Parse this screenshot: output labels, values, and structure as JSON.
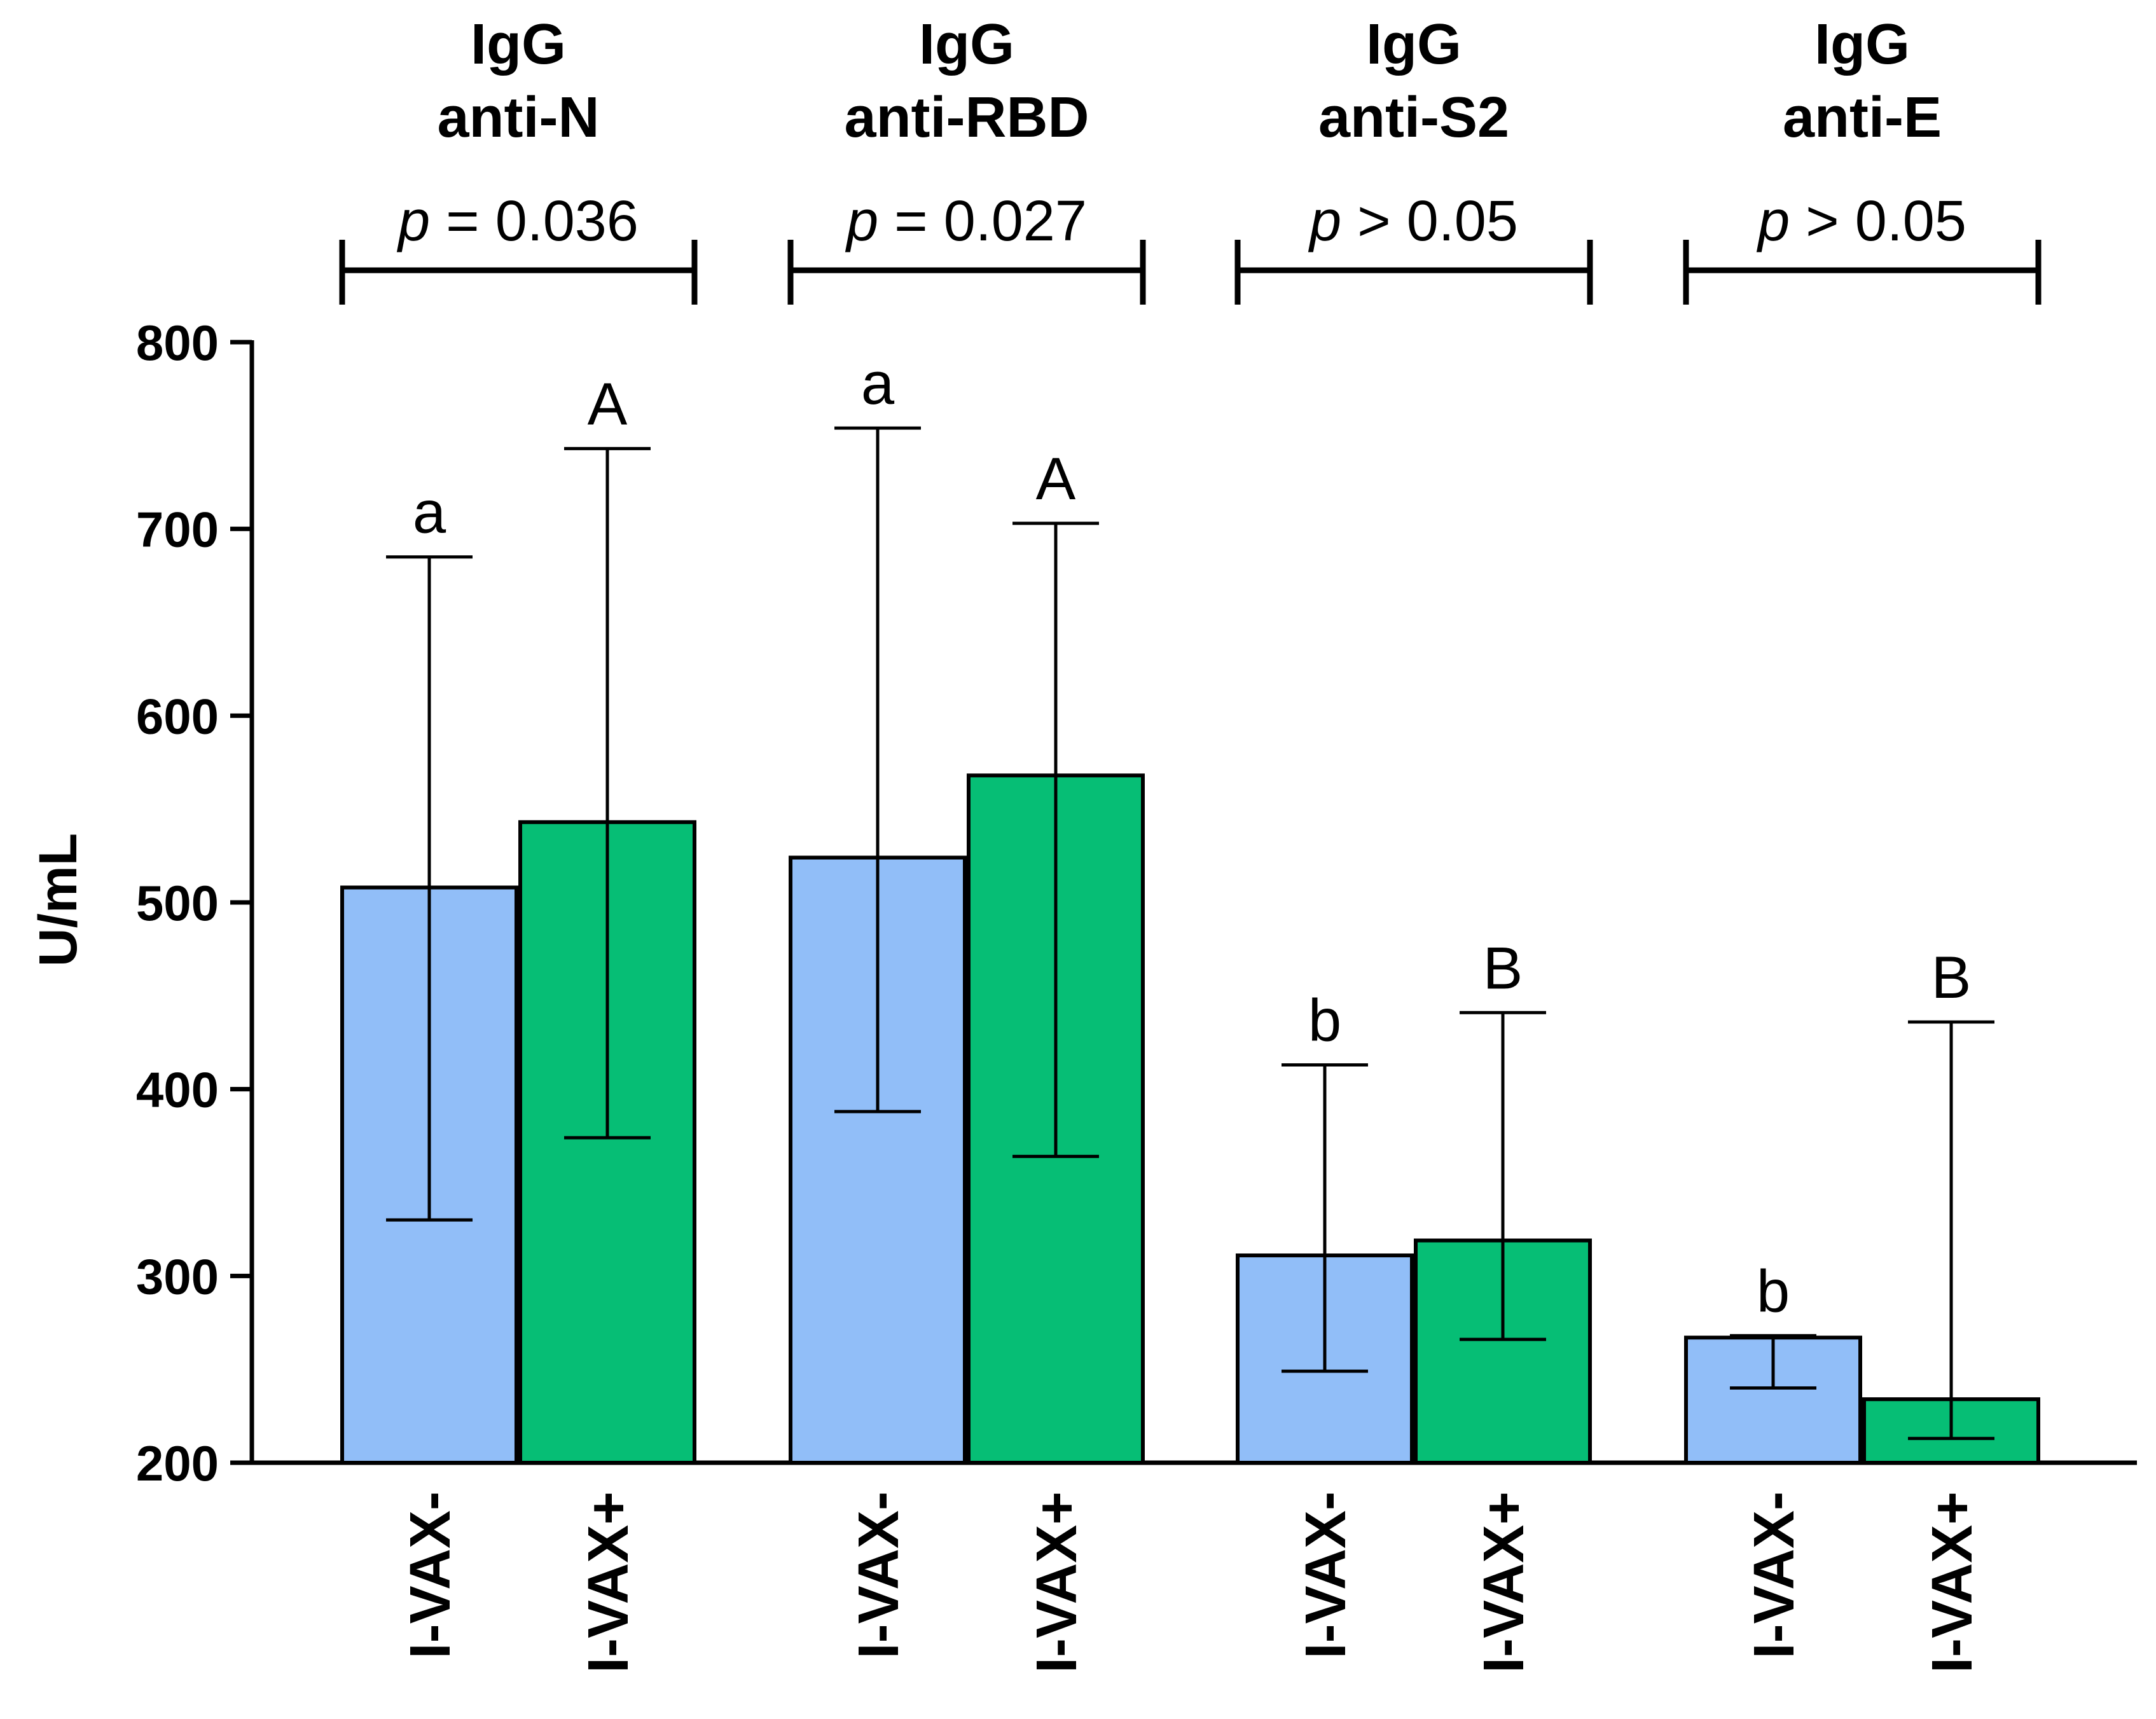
{
  "chart_data": {
    "type": "bar",
    "ylabel": "U/mL",
    "xlabel": "",
    "ylim": [
      200,
      800
    ],
    "yticks": [
      200,
      300,
      400,
      500,
      600,
      700,
      800
    ],
    "grid": false,
    "legend": null,
    "colors": {
      "I-VAX-": "#91BEF8",
      "I-VAX+": "#06BE75"
    },
    "groups": [
      {
        "title_line1": "IgG",
        "title_line2": "anti-N",
        "p_symbol": "p",
        "p_text": " = 0.036",
        "bars": [
          {
            "category": "I-VAX-",
            "value": 508,
            "err_low": 330,
            "err_high": 685,
            "letter": "a"
          },
          {
            "category": "I-VAX+",
            "value": 543,
            "err_low": 374,
            "err_high": 743,
            "letter": "A"
          }
        ]
      },
      {
        "title_line1": "IgG",
        "title_line2": "anti-RBD",
        "p_symbol": "p",
        "p_text": " = 0.027",
        "bars": [
          {
            "category": "I-VAX-",
            "value": 524,
            "err_low": 388,
            "err_high": 754,
            "letter": "a"
          },
          {
            "category": "I-VAX+",
            "value": 568,
            "err_low": 364,
            "err_high": 703,
            "letter": "A"
          }
        ]
      },
      {
        "title_line1": "IgG",
        "title_line2": "anti-S2",
        "p_symbol": "p",
        "p_text": " > 0.05",
        "bars": [
          {
            "category": "I-VAX-",
            "value": 311,
            "err_low": 249,
            "err_high": 413,
            "letter": "b"
          },
          {
            "category": "I-VAX+",
            "value": 319,
            "err_low": 266,
            "err_high": 441,
            "letter": "B"
          }
        ]
      },
      {
        "title_line1": "IgG",
        "title_line2": "anti-E",
        "p_symbol": "p",
        "p_text": " > 0.05",
        "bars": [
          {
            "category": "I-VAX-",
            "value": 267,
            "err_low": 240,
            "err_high": 268,
            "letter": "b"
          },
          {
            "category": "I-VAX+",
            "value": 234,
            "err_low": 213,
            "err_high": 436,
            "letter": "B"
          }
        ]
      }
    ]
  }
}
